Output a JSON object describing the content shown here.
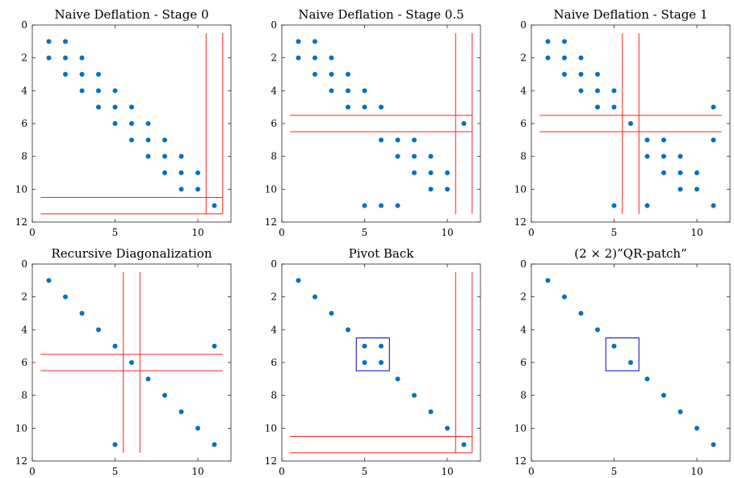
{
  "figure": {
    "title": ""
  },
  "chart_data": [
    {
      "type": "scatter",
      "title": "Naive Deflation - Stage 0",
      "xlim": [
        0,
        12
      ],
      "ylim": [
        0,
        12
      ],
      "y_reversed": true,
      "xticks": [
        0,
        5,
        10
      ],
      "yticks": [
        0,
        2,
        4,
        6,
        8,
        10,
        12
      ],
      "points": [
        [
          1,
          1
        ],
        [
          2,
          1
        ],
        [
          1,
          2
        ],
        [
          2,
          2
        ],
        [
          3,
          2
        ],
        [
          2,
          3
        ],
        [
          3,
          3
        ],
        [
          4,
          3
        ],
        [
          3,
          4
        ],
        [
          4,
          4
        ],
        [
          5,
          4
        ],
        [
          4,
          5
        ],
        [
          5,
          5
        ],
        [
          6,
          5
        ],
        [
          5,
          6
        ],
        [
          6,
          6
        ],
        [
          7,
          6
        ],
        [
          6,
          7
        ],
        [
          7,
          7
        ],
        [
          8,
          7
        ],
        [
          7,
          8
        ],
        [
          8,
          8
        ],
        [
          9,
          8
        ],
        [
          8,
          9
        ],
        [
          9,
          9
        ],
        [
          10,
          9
        ],
        [
          9,
          10
        ],
        [
          10,
          10
        ],
        [
          11,
          11
        ]
      ],
      "vlines": [
        {
          "x": 10.5,
          "y": [
            0.5,
            11.5
          ]
        },
        {
          "x": 11.5,
          "y": [
            0.5,
            11.5
          ]
        }
      ],
      "hlines": [
        {
          "y": 10.5,
          "x": [
            0.5,
            11.5
          ]
        },
        {
          "y": 11.5,
          "x": [
            0.5,
            11.5
          ]
        }
      ],
      "boxes": []
    },
    {
      "type": "scatter",
      "title": "Naive Deflation - Stage 0.5",
      "xlim": [
        0,
        12
      ],
      "ylim": [
        0,
        12
      ],
      "y_reversed": true,
      "xticks": [
        0,
        5,
        10
      ],
      "yticks": [
        0,
        2,
        4,
        6,
        8,
        10,
        12
      ],
      "points": [
        [
          1,
          1
        ],
        [
          2,
          1
        ],
        [
          1,
          2
        ],
        [
          2,
          2
        ],
        [
          3,
          2
        ],
        [
          2,
          3
        ],
        [
          3,
          3
        ],
        [
          4,
          3
        ],
        [
          3,
          4
        ],
        [
          4,
          4
        ],
        [
          5,
          4
        ],
        [
          4,
          5
        ],
        [
          5,
          5
        ],
        [
          6,
          5
        ],
        [
          11,
          6
        ],
        [
          6,
          7
        ],
        [
          7,
          7
        ],
        [
          8,
          7
        ],
        [
          7,
          8
        ],
        [
          8,
          8
        ],
        [
          9,
          8
        ],
        [
          8,
          9
        ],
        [
          9,
          9
        ],
        [
          10,
          9
        ],
        [
          9,
          10
        ],
        [
          10,
          10
        ],
        [
          5,
          11
        ],
        [
          6,
          11
        ],
        [
          7,
          11
        ]
      ],
      "vlines": [
        {
          "x": 10.5,
          "y": [
            0.5,
            11.5
          ]
        },
        {
          "x": 11.5,
          "y": [
            0.5,
            11.5
          ]
        }
      ],
      "hlines": [
        {
          "y": 5.5,
          "x": [
            0.5,
            11.5
          ]
        },
        {
          "y": 6.5,
          "x": [
            0.5,
            11.5
          ]
        }
      ],
      "boxes": []
    },
    {
      "type": "scatter",
      "title": "Naive Deflation - Stage 1",
      "xlim": [
        0,
        12
      ],
      "ylim": [
        0,
        12
      ],
      "y_reversed": true,
      "xticks": [
        0,
        5,
        10
      ],
      "yticks": [
        0,
        2,
        4,
        6,
        8,
        10,
        12
      ],
      "points": [
        [
          1,
          1
        ],
        [
          2,
          1
        ],
        [
          1,
          2
        ],
        [
          2,
          2
        ],
        [
          3,
          2
        ],
        [
          2,
          3
        ],
        [
          3,
          3
        ],
        [
          4,
          3
        ],
        [
          3,
          4
        ],
        [
          4,
          4
        ],
        [
          5,
          4
        ],
        [
          4,
          5
        ],
        [
          5,
          5
        ],
        [
          11,
          5
        ],
        [
          6,
          6
        ],
        [
          7,
          7
        ],
        [
          8,
          7
        ],
        [
          11,
          7
        ],
        [
          7,
          8
        ],
        [
          8,
          8
        ],
        [
          9,
          8
        ],
        [
          8,
          9
        ],
        [
          9,
          9
        ],
        [
          10,
          9
        ],
        [
          9,
          10
        ],
        [
          10,
          10
        ],
        [
          5,
          11
        ],
        [
          7,
          11
        ],
        [
          11,
          11
        ]
      ],
      "vlines": [
        {
          "x": 5.5,
          "y": [
            0.5,
            11.5
          ]
        },
        {
          "x": 6.5,
          "y": [
            0.5,
            11.5
          ]
        }
      ],
      "hlines": [
        {
          "y": 5.5,
          "x": [
            0.5,
            11.5
          ]
        },
        {
          "y": 6.5,
          "x": [
            0.5,
            11.5
          ]
        }
      ],
      "boxes": []
    },
    {
      "type": "scatter",
      "title": "Recursive Diagonalization",
      "xlim": [
        0,
        12
      ],
      "ylim": [
        0,
        12
      ],
      "y_reversed": true,
      "xticks": [
        0,
        5,
        10
      ],
      "yticks": [
        0,
        2,
        4,
        6,
        8,
        10,
        12
      ],
      "points": [
        [
          1,
          1
        ],
        [
          2,
          2
        ],
        [
          3,
          3
        ],
        [
          4,
          4
        ],
        [
          5,
          5
        ],
        [
          11,
          5
        ],
        [
          6,
          6
        ],
        [
          7,
          7
        ],
        [
          8,
          8
        ],
        [
          9,
          9
        ],
        [
          10,
          10
        ],
        [
          5,
          11
        ],
        [
          11,
          11
        ]
      ],
      "vlines": [
        {
          "x": 5.5,
          "y": [
            0.5,
            11.5
          ]
        },
        {
          "x": 6.5,
          "y": [
            0.5,
            11.5
          ]
        }
      ],
      "hlines": [
        {
          "y": 5.5,
          "x": [
            0.5,
            11.5
          ]
        },
        {
          "y": 6.5,
          "x": [
            0.5,
            11.5
          ]
        }
      ],
      "boxes": []
    },
    {
      "type": "scatter",
      "title": "Pivot Back",
      "xlim": [
        0,
        12
      ],
      "ylim": [
        0,
        12
      ],
      "y_reversed": true,
      "xticks": [
        0,
        5,
        10
      ],
      "yticks": [
        0,
        2,
        4,
        6,
        8,
        10,
        12
      ],
      "points": [
        [
          1,
          1
        ],
        [
          2,
          2
        ],
        [
          3,
          3
        ],
        [
          4,
          4
        ],
        [
          5,
          5
        ],
        [
          6,
          5
        ],
        [
          5,
          6
        ],
        [
          6,
          6
        ],
        [
          7,
          7
        ],
        [
          8,
          8
        ],
        [
          9,
          9
        ],
        [
          10,
          10
        ],
        [
          11,
          11
        ]
      ],
      "vlines": [
        {
          "x": 10.5,
          "y": [
            0.5,
            11.5
          ]
        },
        {
          "x": 11.5,
          "y": [
            0.5,
            11.5
          ]
        }
      ],
      "hlines": [
        {
          "y": 10.5,
          "x": [
            0.5,
            11.5
          ]
        },
        {
          "y": 11.5,
          "x": [
            0.5,
            11.5
          ]
        }
      ],
      "boxes": [
        {
          "x": [
            4.5,
            6.5
          ],
          "y": [
            4.5,
            6.5
          ]
        }
      ]
    },
    {
      "type": "scatter",
      "title": "(2 × 2)”QR-patch”",
      "xlim": [
        0,
        12
      ],
      "ylim": [
        0,
        12
      ],
      "y_reversed": true,
      "xticks": [
        0,
        5,
        10
      ],
      "yticks": [
        0,
        2,
        4,
        6,
        8,
        10,
        12
      ],
      "points": [
        [
          1,
          1
        ],
        [
          2,
          2
        ],
        [
          3,
          3
        ],
        [
          4,
          4
        ],
        [
          5,
          5
        ],
        [
          6,
          6
        ],
        [
          7,
          7
        ],
        [
          8,
          8
        ],
        [
          9,
          9
        ],
        [
          10,
          10
        ],
        [
          11,
          11
        ]
      ],
      "vlines": [],
      "hlines": [],
      "boxes": [
        {
          "x": [
            4.5,
            6.5
          ],
          "y": [
            4.5,
            6.5
          ]
        }
      ]
    }
  ]
}
